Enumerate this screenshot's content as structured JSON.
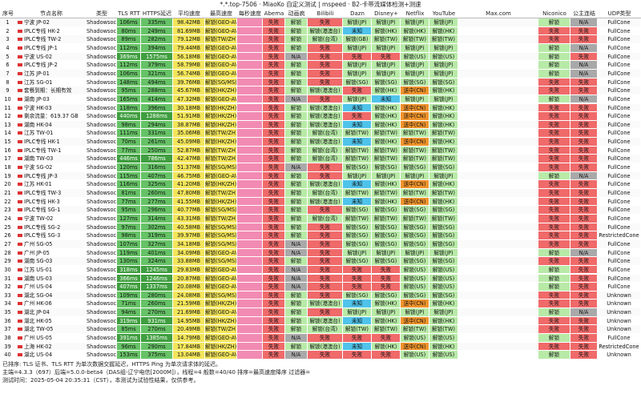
{
  "window": {
    "title": "*.*.top-7506 · MiaoKo 自定义测试 | mspeed · B2-卡带流媒体检测+测速"
  },
  "columns": [
    "序号",
    "节点名称",
    "类型",
    "TLS RTT",
    "HTTPS延迟",
    "平均速度",
    "最高速度",
    "每秒速度",
    "Abema",
    "动画疯",
    "Bilibili",
    "Dazn",
    "Disney+",
    "Netflix",
    "YouTube",
    "Max.com",
    "Niconico",
    "公主连结",
    "UDP类型"
  ],
  "rows": [
    {
      "idx": "1",
      "name": "宁波 JP-02",
      "type": "Shadowsocks",
      "tls": "106ms",
      "https": "335ms",
      "avg": "98.42MB",
      "max": "解锁(GEO-AVAILABILITY/JAPAN)",
      "abema": "失败",
      "anime": "解锁",
      "bili": "失败",
      "dazn": "解锁(JP)",
      "disney": "解锁(JP)",
      "netflix": "解锁(JP)",
      "yt": "解锁(JP)",
      "nico": "解锁",
      "pcr": "N/A",
      "udp": "FullCone"
    },
    {
      "idx": "2",
      "name": "IPLC专线 HK-2",
      "type": "Shadowsocks",
      "tls": "80ms",
      "https": "249ms",
      "avg": "81.69MB",
      "max": "解锁(GEO-AVAILABILITY/JAPAN)",
      "abema": "失败",
      "anime": "解锁",
      "bili": "解锁(港澳台)",
      "dazn": "未知",
      "disney": "解锁(HK)",
      "netflix": "解锁(HK)",
      "yt": "解锁(HK)",
      "nico": "失败",
      "pcr": "失败",
      "udp": "FullCone"
    },
    {
      "idx": "3",
      "name": "IPLC专线 TW-2",
      "type": "Shadowsocks",
      "tls": "89ms",
      "https": "282ms",
      "avg": "79.12MB",
      "max": "解锁(TW/ZH)",
      "abema": "失败",
      "anime": "解锁",
      "bili": "解锁(台湾)",
      "dazn": "解锁(GB)",
      "disney": "解锁(TW)",
      "netflix": "解锁(TW)",
      "yt": "解锁(TW)",
      "nico": "失败",
      "pcr": "失败",
      "udp": "FullCone"
    },
    {
      "idx": "4",
      "name": "IPLC专线 JP-1",
      "type": "Shadowsocks",
      "tls": "112ms",
      "https": "394ms",
      "avg": "79.44MB",
      "max": "解锁(GEO-AVAILABILITY/JAPAN)",
      "abema": "失败",
      "anime": "解锁",
      "bili": "失败",
      "dazn": "解锁(JP)",
      "disney": "解锁(JP)",
      "netflix": "解锁(JP)",
      "yt": "解锁(JP)",
      "nico": "解锁",
      "pcr": "N/A",
      "udp": "FullCone"
    },
    {
      "idx": "5",
      "name": "宁波 US-02",
      "type": "Shadowsocks",
      "tls": "369ms",
      "https": "1575ms",
      "avg": "56.18MB",
      "max": "解锁(GEO-AVAILABILITY/JAPAN)",
      "abema": "失败",
      "anime": "N/A",
      "bili": "失败",
      "dazn": "失败",
      "disney": "失败",
      "netflix": "解锁(US)",
      "yt": "解锁(US)",
      "nico": "解锁",
      "pcr": "失败",
      "udp": "FullCone"
    },
    {
      "idx": "6",
      "name": "IPLC专线 JP-2",
      "type": "Shadowsocks",
      "tls": "112ms",
      "https": "379ms",
      "avg": "58.79MB",
      "max": "解锁(GEO-AVAILABILITY/JAPAN)",
      "abema": "失败",
      "anime": "解锁",
      "bili": "失败",
      "dazn": "解锁(JP)",
      "disney": "解锁(JP)",
      "netflix": "解锁(JP)",
      "yt": "解锁(JP)",
      "nico": "解锁",
      "pcr": "N/A",
      "udp": "FullCone"
    },
    {
      "idx": "7",
      "name": "江苏 JP-01",
      "type": "Shadowsocks",
      "tls": "106ms",
      "https": "321ms",
      "avg": "56.74MB",
      "max": "解锁(GEO-AVAILABILITY/JAPAN)",
      "abema": "失败",
      "anime": "解锁",
      "bili": "失败",
      "dazn": "解锁(JP)",
      "disney": "解锁(JP)",
      "netflix": "解锁(JP)",
      "yt": "解锁(JP)",
      "nico": "解锁",
      "pcr": "N/A",
      "udp": "FullCone"
    },
    {
      "idx": "8",
      "name": "江苏 SG-01",
      "type": "Shadowsocks",
      "tls": "148ms",
      "https": "494ms",
      "avg": "39.76MB",
      "max": "解锁(SG/MS)",
      "abema": "失败",
      "anime": "解锁",
      "bili": "失败",
      "dazn": "解锁(SG)",
      "disney": "解锁(SG)",
      "netflix": "解锁(SG)",
      "yt": "解锁(SG)",
      "nico": "失败",
      "pcr": "失败",
      "udp": "FullCone"
    },
    {
      "idx": "9",
      "name": "套餐到期：长期有效",
      "type": "Shadowsocks",
      "tls": "95ms",
      "https": "288ms",
      "avg": "45.67MB",
      "max": "解锁(HK/ZH)",
      "abema": "失败",
      "anime": "解锁",
      "bili": "解锁(港澳台)",
      "dazn": "失败",
      "disney": "解锁(HK)",
      "netflix": "送中(CN)",
      "yt": "解锁(HK)",
      "nico": "失败",
      "pcr": "失败",
      "udp": "FullCone"
    },
    {
      "idx": "10",
      "name": "湖南 JP-03",
      "type": "Shadowsocks",
      "tls": "165ms",
      "https": "414ms",
      "avg": "47.32MB",
      "max": "解锁(GEO-AVAILABILITY/JAPAN)",
      "abema": "失败",
      "anime": "N/A",
      "bili": "失败",
      "dazn": "解锁(JP)",
      "disney": "未知",
      "netflix": "解锁(JP)",
      "yt": "解锁(JP)",
      "nico": "解锁",
      "pcr": "N/A",
      "udp": "FullCone"
    },
    {
      "idx": "11",
      "name": "宁波 HK-03",
      "type": "Shadowsocks",
      "tls": "118ms",
      "https": "396ms",
      "avg": "30.18MB",
      "max": "解锁(HK/ZH)",
      "abema": "失败",
      "anime": "解锁",
      "bili": "解锁(港澳台)",
      "dazn": "未知",
      "disney": "解锁(HK)",
      "netflix": "送中(CN)",
      "yt": "解锁(HK)",
      "nico": "失败",
      "pcr": "失败",
      "udp": "FullCone"
    },
    {
      "idx": "12",
      "name": "剩余流量：619.37 GB",
      "type": "Shadowsocks",
      "tls": "440ms",
      "https": "1288ms",
      "avg": "51.91MB",
      "max": "解锁(HK/ZH)",
      "abema": "失败",
      "anime": "解锁",
      "bili": "解锁(港澳台)",
      "dazn": "失败",
      "disney": "解锁(HK)",
      "netflix": "送中(CN)",
      "yt": "解锁(HK)",
      "nico": "失败",
      "pcr": "失败",
      "udp": "FullCone"
    },
    {
      "idx": "13",
      "name": "湖南 HK-04",
      "type": "Shadowsocks",
      "tls": "98ms",
      "https": "294ms",
      "avg": "38.87MB",
      "max": "解锁(HK/ZH)",
      "abema": "失败",
      "anime": "解锁",
      "bili": "解锁(港澳台)",
      "dazn": "未知",
      "disney": "解锁(HK)",
      "netflix": "送中(CN)",
      "yt": "解锁(HK)",
      "nico": "失败",
      "pcr": "失败",
      "udp": "FullCone"
    },
    {
      "idx": "14",
      "name": "江苏 TW-01",
      "type": "Shadowsocks",
      "tls": "111ms",
      "https": "331ms",
      "avg": "35.06MB",
      "max": "解锁(TW/ZH)",
      "abema": "失败",
      "anime": "解锁",
      "bili": "解锁(台湾)",
      "dazn": "解锁(TW)",
      "disney": "解锁(TW)",
      "netflix": "解锁(TW)",
      "yt": "解锁(TW)",
      "nico": "失败",
      "pcr": "失败",
      "udp": "FullCone"
    },
    {
      "idx": "15",
      "name": "IPLC专线 HK-1",
      "type": "Shadowsocks",
      "tls": "70ms",
      "https": "261ms",
      "avg": "45.09MB",
      "max": "解锁(HK/ZH)",
      "abema": "失败",
      "anime": "解锁",
      "bili": "解锁(港澳台)",
      "dazn": "未知",
      "disney": "解锁(HK)",
      "netflix": "送中(CN)",
      "yt": "解锁(HK)",
      "nico": "失败",
      "pcr": "失败",
      "udp": "FullCone"
    },
    {
      "idx": "16",
      "name": "IPLC专线 TW-1",
      "type": "Shadowsocks",
      "tls": "77ms",
      "https": "250ms",
      "avg": "52.87MB",
      "max": "解锁(TW/ZH)",
      "abema": "失败",
      "anime": "解锁",
      "bili": "解锁(台湾)",
      "dazn": "解锁(TW)",
      "disney": "解锁(TW)",
      "netflix": "解锁(TW)",
      "yt": "解锁(TW)",
      "nico": "失败",
      "pcr": "失败",
      "udp": "FullCone"
    },
    {
      "idx": "17",
      "name": "湖南 TW-03",
      "type": "Shadowsocks",
      "tls": "446ms",
      "https": "786ms",
      "avg": "42.47MB",
      "max": "解锁(TW/ZH)",
      "abema": "失败",
      "anime": "解锁",
      "bili": "解锁(台湾)",
      "dazn": "解锁(TW)",
      "disney": "解锁(TW)",
      "netflix": "解锁(TW)",
      "yt": "解锁(TW)",
      "nico": "失败",
      "pcr": "失败",
      "udp": "FullCone"
    },
    {
      "idx": "18",
      "name": "宁波 SG-02",
      "type": "Shadowsocks",
      "tls": "120ms",
      "https": "316ms",
      "avg": "51.37MB",
      "max": "解锁(SG/MS)",
      "abema": "失败",
      "anime": "N/A",
      "bili": "失败",
      "dazn": "解锁(SG)",
      "disney": "解锁(SG)",
      "netflix": "解锁(SG)",
      "yt": "解锁(SG)",
      "nico": "失败",
      "pcr": "失败",
      "udp": "FullCone"
    },
    {
      "idx": "19",
      "name": "IPLC专线 JP-3",
      "type": "Shadowsocks",
      "tls": "115ms",
      "https": "407ms",
      "avg": "46.75MB",
      "max": "解锁(GEO-AVAILABILITY/JAPAN)",
      "abema": "失败",
      "anime": "解锁",
      "bili": "失败",
      "dazn": "解锁(JP)",
      "disney": "解锁(JP)",
      "netflix": "解锁(JP)",
      "yt": "解锁(JP)",
      "nico": "解锁",
      "pcr": "N/A",
      "udp": "FullCone"
    },
    {
      "idx": "20",
      "name": "江苏 HK-01",
      "type": "Shadowsocks",
      "tls": "116ms",
      "https": "325ms",
      "avg": "41.20MB",
      "max": "解锁(HK/ZH)",
      "abema": "失败",
      "anime": "解锁",
      "bili": "解锁(港澳台)",
      "dazn": "未知",
      "disney": "解锁(HK)",
      "netflix": "送中(CN)",
      "yt": "解锁(HK)",
      "nico": "失败",
      "pcr": "失败",
      "udp": "FullCone"
    },
    {
      "idx": "21",
      "name": "IPLC专线 TW-3",
      "type": "Shadowsocks",
      "tls": "81ms",
      "https": "260ms",
      "avg": "47.80MB",
      "max": "解锁(TW/ZH)",
      "abema": "失败",
      "anime": "解锁",
      "bili": "解锁(台湾)",
      "dazn": "解锁(TW)",
      "disney": "解锁(TW)",
      "netflix": "解锁(TW)",
      "yt": "解锁(TW)",
      "nico": "失败",
      "pcr": "失败",
      "udp": "FullCone"
    },
    {
      "idx": "22",
      "name": "IPLC专线 HK-3",
      "type": "Shadowsocks",
      "tls": "77ms",
      "https": "277ms",
      "avg": "41.55MB",
      "max": "解锁(HK/ZH)",
      "abema": "失败",
      "anime": "解锁",
      "bili": "解锁(港澳台)",
      "dazn": "未知",
      "disney": "解锁(HK)",
      "netflix": "送中(CN)",
      "yt": "解锁(HK)",
      "nico": "失败",
      "pcr": "失败",
      "udp": "FullCone"
    },
    {
      "idx": "23",
      "name": "IPLC专线 SG-1",
      "type": "Shadowsocks",
      "tls": "95ms",
      "https": "296ms",
      "avg": "40.77MB",
      "max": "解锁(SG/MS)",
      "abema": "失败",
      "anime": "解锁",
      "bili": "失败",
      "dazn": "解锁(SG)",
      "disney": "解锁(SG)",
      "netflix": "解锁(SG)",
      "yt": "解锁(SG)",
      "nico": "失败",
      "pcr": "失败",
      "udp": "FullCone"
    },
    {
      "idx": "24",
      "name": "宁波 TW-02",
      "type": "Shadowsocks",
      "tls": "127ms",
      "https": "314ms",
      "avg": "43.31MB",
      "max": "解锁(TW/ZH)",
      "abema": "失败",
      "anime": "解锁",
      "bili": "解锁(台湾)",
      "dazn": "解锁(TW)",
      "disney": "解锁(TW)",
      "netflix": "解锁(TW)",
      "yt": "解锁(TW)",
      "nico": "失败",
      "pcr": "失败",
      "udp": "FullCone"
    },
    {
      "idx": "25",
      "name": "IPLC专线 SG-2",
      "type": "Shadowsocks",
      "tls": "97ms",
      "https": "302ms",
      "avg": "40.58MB",
      "max": "解锁(SG/MS)",
      "abema": "失败",
      "anime": "解锁",
      "bili": "失败",
      "dazn": "解锁(SG)",
      "disney": "解锁(SG)",
      "netflix": "解锁(SG)",
      "yt": "解锁(SG)",
      "nico": "失败",
      "pcr": "失败",
      "udp": "FullCone"
    },
    {
      "idx": "26",
      "name": "IPLC专线 SG-3",
      "type": "Shadowsocks",
      "tls": "98ms",
      "https": "319ms",
      "avg": "39.97MB",
      "max": "解锁(SG/MS)",
      "abema": "失败",
      "anime": "解锁",
      "bili": "失败",
      "dazn": "解锁(SG)",
      "disney": "解锁(SG)",
      "netflix": "解锁(SG)",
      "yt": "解锁(SG)",
      "nico": "失败",
      "pcr": "失败",
      "udp": "RestrictedCone"
    },
    {
      "idx": "27",
      "name": "广州 SG-05",
      "type": "Shadowsocks",
      "tls": "107ms",
      "https": "327ms",
      "avg": "34.18MB",
      "max": "解锁(SG/MS)",
      "abema": "失败",
      "anime": "N/A",
      "bili": "失败",
      "dazn": "解锁(SG)",
      "disney": "解锁(SG)",
      "netflix": "解锁(SG)",
      "yt": "解锁(SG)",
      "nico": "失败",
      "pcr": "失败",
      "udp": "FullCone"
    },
    {
      "idx": "28",
      "name": "广州 JP-05",
      "type": "Shadowsocks",
      "tls": "119ms",
      "https": "401ms",
      "avg": "34.09MB",
      "max": "解锁(GEO-AVAILABILITY/JAPAN)",
      "abema": "失败",
      "anime": "N/A",
      "bili": "失败",
      "dazn": "解锁(JP)",
      "disney": "解锁(JP)",
      "netflix": "解锁(JP)",
      "yt": "解锁(JP)",
      "nico": "解锁",
      "pcr": "N/A",
      "udp": "FullCone"
    },
    {
      "idx": "29",
      "name": "湖南 SG-03",
      "type": "Shadowsocks",
      "tls": "130ms",
      "https": "324ms",
      "avg": "33.88MB",
      "max": "解锁(SG/MS)",
      "abema": "失败",
      "anime": "解锁",
      "bili": "失败",
      "dazn": "解锁(SG)",
      "disney": "解锁(SG)",
      "netflix": "解锁(SG)",
      "yt": "解锁(SG)",
      "nico": "失败",
      "pcr": "失败",
      "udp": "FullCone"
    },
    {
      "idx": "30",
      "name": "江苏 US-01",
      "type": "Shadowsocks",
      "tls": "318ms",
      "https": "1245ms",
      "avg": "29.83MB",
      "max": "解锁(GEO-AVAILABILITY/JAPAN)",
      "abema": "失败",
      "anime": "N/A",
      "bili": "失败",
      "dazn": "失败",
      "disney": "失败",
      "netflix": "解锁(US)",
      "yt": "解锁(US)",
      "nico": "解锁",
      "pcr": "失败",
      "udp": "FullCone"
    },
    {
      "idx": "31",
      "name": "湖南 US-03",
      "type": "Shadowsocks",
      "tls": "366ms",
      "https": "1246ms",
      "avg": "20.87MB",
      "max": "解锁(GEO-AVAILABILITY/JAPAN)",
      "abema": "失败",
      "anime": "N/A",
      "bili": "失败",
      "dazn": "失败",
      "disney": "失败",
      "netflix": "解锁(US)",
      "yt": "解锁(US)",
      "nico": "解锁",
      "pcr": "失败",
      "udp": "FullCone"
    },
    {
      "idx": "32",
      "name": "广州 US-04",
      "type": "Shadowsocks",
      "tls": "407ms",
      "https": "1337ms",
      "avg": "20.08MB",
      "max": "解锁(GEO-AVAILABILITY/JAPAN)",
      "abema": "失败",
      "anime": "N/A",
      "bili": "失败",
      "dazn": "失败",
      "disney": "失败",
      "netflix": "解锁(US)",
      "yt": "解锁(US)",
      "nico": "解锁",
      "pcr": "失败",
      "udp": "FullCone"
    },
    {
      "idx": "33",
      "name": "湖北 SG-04",
      "type": "Shadowsocks",
      "tls": "109ms",
      "https": "280ms",
      "avg": "24.08MB",
      "max": "解锁(SG/MS)",
      "abema": "失败",
      "anime": "解锁",
      "bili": "失败",
      "dazn": "解锁(SG)",
      "disney": "解锁(SG)",
      "netflix": "解锁(SG)",
      "yt": "解锁(SG)",
      "nico": "失败",
      "pcr": "失败",
      "udp": "Unknown"
    },
    {
      "idx": "34",
      "name": "广州 HK-06",
      "type": "Shadowsocks",
      "tls": "71ms",
      "https": "260ms",
      "avg": "21.59MB",
      "max": "解锁(HK/ZH)",
      "abema": "失败",
      "anime": "解锁",
      "bili": "解锁(港澳台)",
      "dazn": "未知",
      "disney": "解锁(HK)",
      "netflix": "送中(CN)",
      "yt": "解锁(HK)",
      "nico": "失败",
      "pcr": "失败",
      "udp": "Unknown"
    },
    {
      "idx": "35",
      "name": "湖北 JP-04",
      "type": "Shadowsocks",
      "tls": "94ms",
      "https": "270ms",
      "avg": "21.69MB",
      "max": "解锁(GEO-AVAILABILITY/JAPAN)",
      "abema": "失败",
      "anime": "解锁",
      "bili": "失败",
      "dazn": "解锁(JP)",
      "disney": "解锁(JP)",
      "netflix": "解锁(JP)",
      "yt": "解锁(JP)",
      "nico": "解锁",
      "pcr": "N/A",
      "udp": "Unknown"
    },
    {
      "idx": "36",
      "name": "湖北 HK-05",
      "type": "Shadowsocks",
      "tls": "319ms",
      "https": "931ms",
      "avg": "14.95MB",
      "max": "解锁(HK/ZH)",
      "abema": "失败",
      "anime": "解锁",
      "bili": "解锁(港澳台)",
      "dazn": "未知",
      "disney": "解锁(HK)",
      "netflix": "送中(CN)",
      "yt": "解锁(HK)",
      "nico": "失败",
      "pcr": "失败",
      "udp": "Unknown"
    },
    {
      "idx": "37",
      "name": "湖北 TW-05",
      "type": "Shadowsocks",
      "tls": "85ms",
      "https": "270ms",
      "avg": "20.49MB",
      "max": "解锁(TW/ZH)",
      "abema": "失败",
      "anime": "解锁",
      "bili": "解锁(台湾)",
      "dazn": "解锁(TW)",
      "disney": "解锁(TW)",
      "netflix": "解锁(TW)",
      "yt": "解锁(TW)",
      "nico": "失败",
      "pcr": "失败",
      "udp": "Unknown"
    },
    {
      "idx": "38",
      "name": "广州 US-05",
      "type": "Shadowsocks",
      "tls": "391ms",
      "https": "1385ms",
      "avg": "14.79MB",
      "max": "解锁(GEO-AVAILABILITY/JAPAN)",
      "abema": "失败",
      "anime": "N/A",
      "bili": "失败",
      "dazn": "失败",
      "disney": "失败",
      "netflix": "解锁(US)",
      "yt": "解锁(US)",
      "nico": "解锁",
      "pcr": "失败",
      "udp": "FullCone"
    },
    {
      "idx": "39",
      "name": "上海 HK-02",
      "type": "Shadowsocks",
      "tls": "96ms",
      "https": "290ms",
      "avg": "17.84MB",
      "max": "解锁(HK/ZH)",
      "abema": "失败",
      "anime": "解锁",
      "bili": "解锁(港澳台)",
      "dazn": "未知",
      "disney": "解锁(HK)",
      "netflix": "送中(CN)",
      "yt": "解锁(HK)",
      "nico": "失败",
      "pcr": "失败",
      "udp": "RestrictedCone"
    },
    {
      "idx": "40",
      "name": "湖北 US-04",
      "type": "Shadowsocks",
      "tls": "153ms",
      "https": "375ms",
      "avg": "13.04MB",
      "max": "解锁(GEO-AVAILABILITY/JAPAN)",
      "abema": "失败",
      "anime": "N/A",
      "bili": "失败",
      "dazn": "失败",
      "disney": "失败",
      "netflix": "解锁(US)",
      "yt": "解锁(US)",
      "nico": "解锁",
      "pcr": "失败",
      "udp": "Unknown"
    }
  ],
  "footer": {
    "line1": "已排序: TLS 证书、TLS RTT 为单次数据交握延迟，HTTPS Ping 为单次请求体的延迟。",
    "line2": "主端=4.3.3（697）后端=5.0.0-beta4（DAS组-辽宁电信[2000M]），线程=4 般数=40/40 排序=最高速度降序 过滤器=",
    "line3": "测试时间：2025-05-04 20:35:31（CST），本测试为试验性结果，仅供参考。"
  },
  "colors": {
    "green": "#7dd67d",
    "light_green": "#b8eaa7",
    "red": "#f06a6a",
    "orange": "#f0932b",
    "gray": "#a9a9a9",
    "blue": "#4fc3ea",
    "yellow": "#f3e55a",
    "pink": "#f28bb3"
  }
}
